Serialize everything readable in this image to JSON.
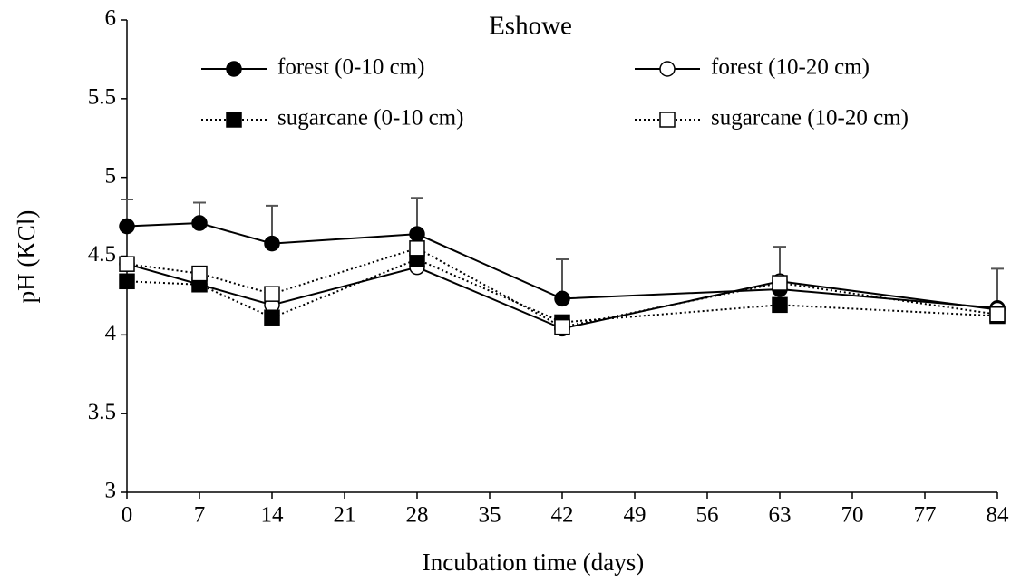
{
  "chart_data": {
    "type": "line",
    "title": "Eshowe",
    "xlabel": "Incubation time (days)",
    "ylabel": "pH (KCl)",
    "x": [
      0,
      7,
      14,
      28,
      42,
      63,
      84
    ],
    "xlim": [
      0,
      84
    ],
    "xticks": [
      0,
      7,
      14,
      21,
      28,
      35,
      42,
      49,
      56,
      63,
      70,
      77,
      84
    ],
    "ylim": [
      3,
      6
    ],
    "yticks": [
      3,
      3.5,
      4,
      4.5,
      5,
      5.5,
      6
    ],
    "series": [
      {
        "name": "forest (0-10 cm)",
        "color": "#000000",
        "marker": "circle",
        "filled": true,
        "linestyle": "solid",
        "values": [
          4.69,
          4.71,
          4.58,
          4.64,
          4.23,
          4.29,
          4.17
        ],
        "errors": [
          0.17,
          0.13,
          0.24,
          0.23,
          0.25,
          0.27,
          0.25
        ]
      },
      {
        "name": "forest (10-20 cm)",
        "color": "#000000",
        "marker": "circle",
        "filled": false,
        "linestyle": "solid",
        "values": [
          4.45,
          4.32,
          4.19,
          4.43,
          4.04,
          4.34,
          4.16
        ]
      },
      {
        "name": "sugarcane (0-10 cm)",
        "color": "#000000",
        "marker": "square",
        "filled": true,
        "linestyle": "dotted",
        "values": [
          4.34,
          4.32,
          4.11,
          4.48,
          4.08,
          4.19,
          4.12
        ]
      },
      {
        "name": "sugarcane (10-20 cm)",
        "color": "#000000",
        "marker": "square",
        "filled": false,
        "linestyle": "dotted",
        "values": [
          4.45,
          4.39,
          4.26,
          4.55,
          4.05,
          4.33,
          4.13
        ]
      }
    ]
  }
}
